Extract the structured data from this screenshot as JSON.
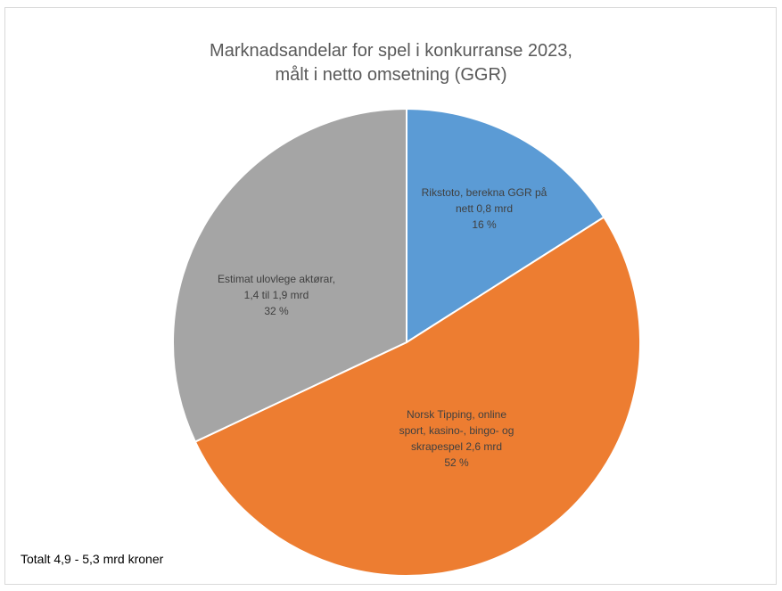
{
  "chart_data": {
    "type": "pie",
    "title_lines": [
      "Marknadsandelar for spel i konkurranse 2023,",
      "målt i netto omsetning (GGR)"
    ],
    "slices": [
      {
        "label_lines": [
          "Rikstoto, berekna GGR på",
          "nett 0,8 mrd",
          "16 %"
        ],
        "value": 16,
        "color": "#5b9bd5"
      },
      {
        "label_lines": [
          "Norsk Tipping, online",
          "sport, kasino-, bingo- og",
          "skrapespel 2,6 mrd",
          "52 %"
        ],
        "value": 52,
        "color": "#ed7d31"
      },
      {
        "label_lines": [
          "Estimat ulovlege aktørar,",
          "1,4 til 1,9 mrd",
          "32 %"
        ],
        "value": 32,
        "color": "#a5a5a5"
      }
    ],
    "footnote": "Totalt 4,9 - 5,3 mrd kroner"
  }
}
